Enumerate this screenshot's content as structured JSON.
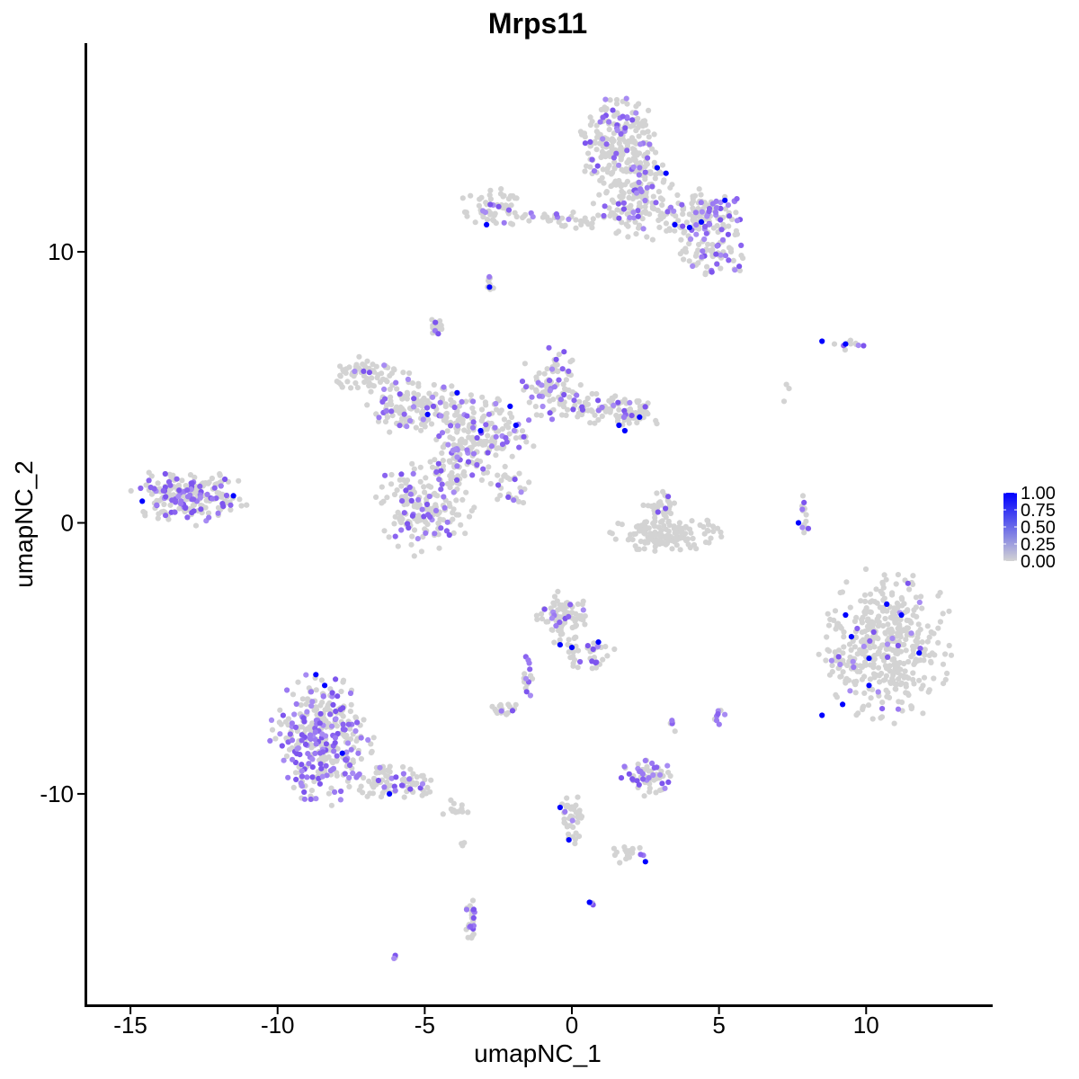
{
  "chart_data": {
    "type": "scatter",
    "title": "Mrps11",
    "xlabel": "umapNC_1",
    "ylabel": "umapNC_2",
    "xlim": [
      -16.5,
      14.3
    ],
    "ylim": [
      -17.8,
      17.7
    ],
    "x_ticks": [
      -15,
      -10,
      -5,
      0,
      5,
      10
    ],
    "x_tick_labels": [
      "-15",
      "-10",
      "-5",
      "0",
      "5",
      "10"
    ],
    "y_ticks": [
      -10,
      0,
      10
    ],
    "y_tick_labels": [
      "-10",
      "0",
      "10"
    ],
    "grid": false,
    "legend": {
      "placement": "right",
      "type": "colorbar",
      "min_color": "#d3d3d3",
      "max_color": "#0000ff",
      "range": [
        0,
        1
      ],
      "tick_values": [
        0,
        0.25,
        0.5,
        0.75,
        1
      ],
      "tick_labels": [
        "0.00",
        "0.25",
        "0.50",
        "0.75",
        "1.00"
      ]
    },
    "colors": {
      "low": "#d3d3d3",
      "high": "#0000ff",
      "mid": "#8a63f0"
    },
    "clusters": [
      {
        "cx": -2.6,
        "cy": 11.6,
        "rx": 1.1,
        "ry": 0.6,
        "n": 60,
        "frac": 0.1
      },
      {
        "cx": -0.2,
        "cy": 11.2,
        "rx": 2.0,
        "ry": 0.3,
        "n": 40,
        "frac": 0.12
      },
      {
        "cx": 1.6,
        "cy": 14.0,
        "rx": 1.2,
        "ry": 1.4,
        "n": 220,
        "frac": 0.18
      },
      {
        "cx": 2.2,
        "cy": 12.0,
        "rx": 1.2,
        "ry": 1.4,
        "n": 160,
        "frac": 0.15
      },
      {
        "cx": 4.5,
        "cy": 11.3,
        "rx": 1.2,
        "ry": 0.9,
        "n": 140,
        "frac": 0.3
      },
      {
        "cx": 4.8,
        "cy": 9.8,
        "rx": 1.1,
        "ry": 0.6,
        "n": 60,
        "frac": 0.25
      },
      {
        "cx": -2.8,
        "cy": 8.9,
        "rx": 0.15,
        "ry": 0.4,
        "n": 10,
        "frac": 0.1
      },
      {
        "cx": -4.6,
        "cy": 7.3,
        "rx": 0.25,
        "ry": 0.3,
        "n": 18,
        "frac": 0.2
      },
      {
        "cx": -7.0,
        "cy": 5.5,
        "rx": 1.2,
        "ry": 0.6,
        "n": 70,
        "frac": 0.15
      },
      {
        "cx": -5.2,
        "cy": 4.2,
        "rx": 1.6,
        "ry": 0.9,
        "n": 140,
        "frac": 0.2
      },
      {
        "cx": -3.0,
        "cy": 3.2,
        "rx": 1.5,
        "ry": 1.3,
        "n": 160,
        "frac": 0.2
      },
      {
        "cx": -0.8,
        "cy": 5.0,
        "rx": 0.9,
        "ry": 1.2,
        "n": 90,
        "frac": 0.25
      },
      {
        "cx": 0.8,
        "cy": 4.3,
        "rx": 1.0,
        "ry": 0.5,
        "n": 60,
        "frac": 0.15
      },
      {
        "cx": 2.0,
        "cy": 4.0,
        "rx": 0.8,
        "ry": 0.6,
        "n": 50,
        "frac": 0.15
      },
      {
        "cx": -5.0,
        "cy": 0.6,
        "rx": 1.4,
        "ry": 1.5,
        "n": 180,
        "frac": 0.25
      },
      {
        "cx": -4.0,
        "cy": 2.2,
        "rx": 0.6,
        "ry": 0.8,
        "n": 50,
        "frac": 0.2
      },
      {
        "cx": -2.0,
        "cy": 1.3,
        "rx": 0.8,
        "ry": 0.5,
        "n": 25,
        "frac": 0.15
      },
      {
        "cx": -13.0,
        "cy": 1.0,
        "rx": 1.7,
        "ry": 0.9,
        "n": 220,
        "frac": 0.3
      },
      {
        "cx": 3.2,
        "cy": -0.4,
        "rx": 1.6,
        "ry": 0.6,
        "n": 140,
        "frac": 0.03
      },
      {
        "cx": 3.0,
        "cy": 0.6,
        "rx": 0.6,
        "ry": 0.5,
        "n": 30,
        "frac": 0.05
      },
      {
        "cx": 7.9,
        "cy": 0.2,
        "rx": 0.2,
        "ry": 0.8,
        "n": 15,
        "frac": 0.3
      },
      {
        "cx": 9.3,
        "cy": 6.6,
        "rx": 0.8,
        "ry": 0.2,
        "n": 10,
        "frac": 0.1
      },
      {
        "cx": 10.7,
        "cy": -4.5,
        "rx": 1.9,
        "ry": 2.4,
        "n": 420,
        "frac": 0.04
      },
      {
        "cx": 9.2,
        "cy": -5.3,
        "rx": 0.6,
        "ry": 0.5,
        "n": 20,
        "frac": 0.25
      },
      {
        "cx": -0.3,
        "cy": -3.5,
        "rx": 0.8,
        "ry": 0.8,
        "n": 80,
        "frac": 0.15
      },
      {
        "cx": 0.5,
        "cy": -4.8,
        "rx": 0.8,
        "ry": 0.6,
        "n": 40,
        "frac": 0.2
      },
      {
        "cx": -1.5,
        "cy": -5.5,
        "rx": 0.2,
        "ry": 1.0,
        "n": 15,
        "frac": 0.5
      },
      {
        "cx": -2.4,
        "cy": -6.9,
        "rx": 0.5,
        "ry": 0.25,
        "n": 20,
        "frac": 0.15
      },
      {
        "cx": -8.5,
        "cy": -8.0,
        "rx": 1.5,
        "ry": 2.0,
        "n": 340,
        "frac": 0.4
      },
      {
        "cx": -6.0,
        "cy": -9.5,
        "rx": 1.3,
        "ry": 0.6,
        "n": 80,
        "frac": 0.15
      },
      {
        "cx": -4.0,
        "cy": -10.5,
        "rx": 0.5,
        "ry": 0.3,
        "n": 15,
        "frac": 0.2
      },
      {
        "cx": 2.5,
        "cy": -9.4,
        "rx": 0.9,
        "ry": 0.6,
        "n": 60,
        "frac": 0.4
      },
      {
        "cx": 3.4,
        "cy": -7.5,
        "rx": 0.1,
        "ry": 0.3,
        "n": 6,
        "frac": 0.3
      },
      {
        "cx": 5.0,
        "cy": -7.1,
        "rx": 0.2,
        "ry": 0.3,
        "n": 8,
        "frac": 0.3
      },
      {
        "cx": 0.0,
        "cy": -11.0,
        "rx": 0.4,
        "ry": 0.9,
        "n": 40,
        "frac": 0.15
      },
      {
        "cx": 1.8,
        "cy": -12.2,
        "rx": 0.6,
        "ry": 0.3,
        "n": 20,
        "frac": 0.1
      },
      {
        "cx": -3.4,
        "cy": -14.6,
        "rx": 0.2,
        "ry": 0.9,
        "n": 25,
        "frac": 0.3
      },
      {
        "cx": -6.0,
        "cy": -16.0,
        "rx": 0.1,
        "ry": 0.1,
        "n": 3,
        "frac": 0.5
      },
      {
        "cx": 0.7,
        "cy": -14.0,
        "rx": 0.1,
        "ry": 0.1,
        "n": 3,
        "frac": 0.5
      },
      {
        "cx": 7.4,
        "cy": 4.8,
        "rx": 0.3,
        "ry": 0.8,
        "n": 3,
        "frac": 0.0
      },
      {
        "cx": -3.7,
        "cy": -11.8,
        "rx": 0.1,
        "ry": 0.1,
        "n": 3,
        "frac": 0.3
      }
    ],
    "high_points": [
      [
        -2.9,
        11.0
      ],
      [
        2.9,
        13.1
      ],
      [
        3.2,
        12.9
      ],
      [
        3.5,
        11.0
      ],
      [
        4.0,
        10.9
      ],
      [
        4.4,
        11.1
      ],
      [
        5.2,
        11.9
      ],
      [
        -2.8,
        8.7
      ],
      [
        -4.9,
        4.0
      ],
      [
        -3.9,
        4.8
      ],
      [
        -3.1,
        3.4
      ],
      [
        -2.1,
        4.3
      ],
      [
        -1.9,
        3.6
      ],
      [
        1.6,
        3.6
      ],
      [
        1.8,
        3.4
      ],
      [
        2.3,
        3.9
      ],
      [
        -11.5,
        1.0
      ],
      [
        -14.6,
        0.8
      ],
      [
        7.7,
        0.0
      ],
      [
        8.5,
        6.7
      ],
      [
        9.3,
        6.6
      ],
      [
        9.3,
        -3.4
      ],
      [
        9.5,
        -4.2
      ],
      [
        10.1,
        -5.0
      ],
      [
        10.7,
        -3.0
      ],
      [
        11.2,
        -3.4
      ],
      [
        11.8,
        -4.8
      ],
      [
        10.1,
        -6.0
      ],
      [
        8.5,
        -7.1
      ],
      [
        9.2,
        -6.7
      ],
      [
        -0.4,
        -4.5
      ],
      [
        0.0,
        -4.6
      ],
      [
        0.9,
        -4.4
      ],
      [
        -8.7,
        -5.6
      ],
      [
        -8.4,
        -6.0
      ],
      [
        -7.8,
        -8.5
      ],
      [
        -6.2,
        -10.0
      ],
      [
        -0.4,
        -10.5
      ],
      [
        -0.1,
        -11.7
      ],
      [
        0.6,
        -14.0
      ],
      [
        2.5,
        -12.5
      ]
    ]
  }
}
